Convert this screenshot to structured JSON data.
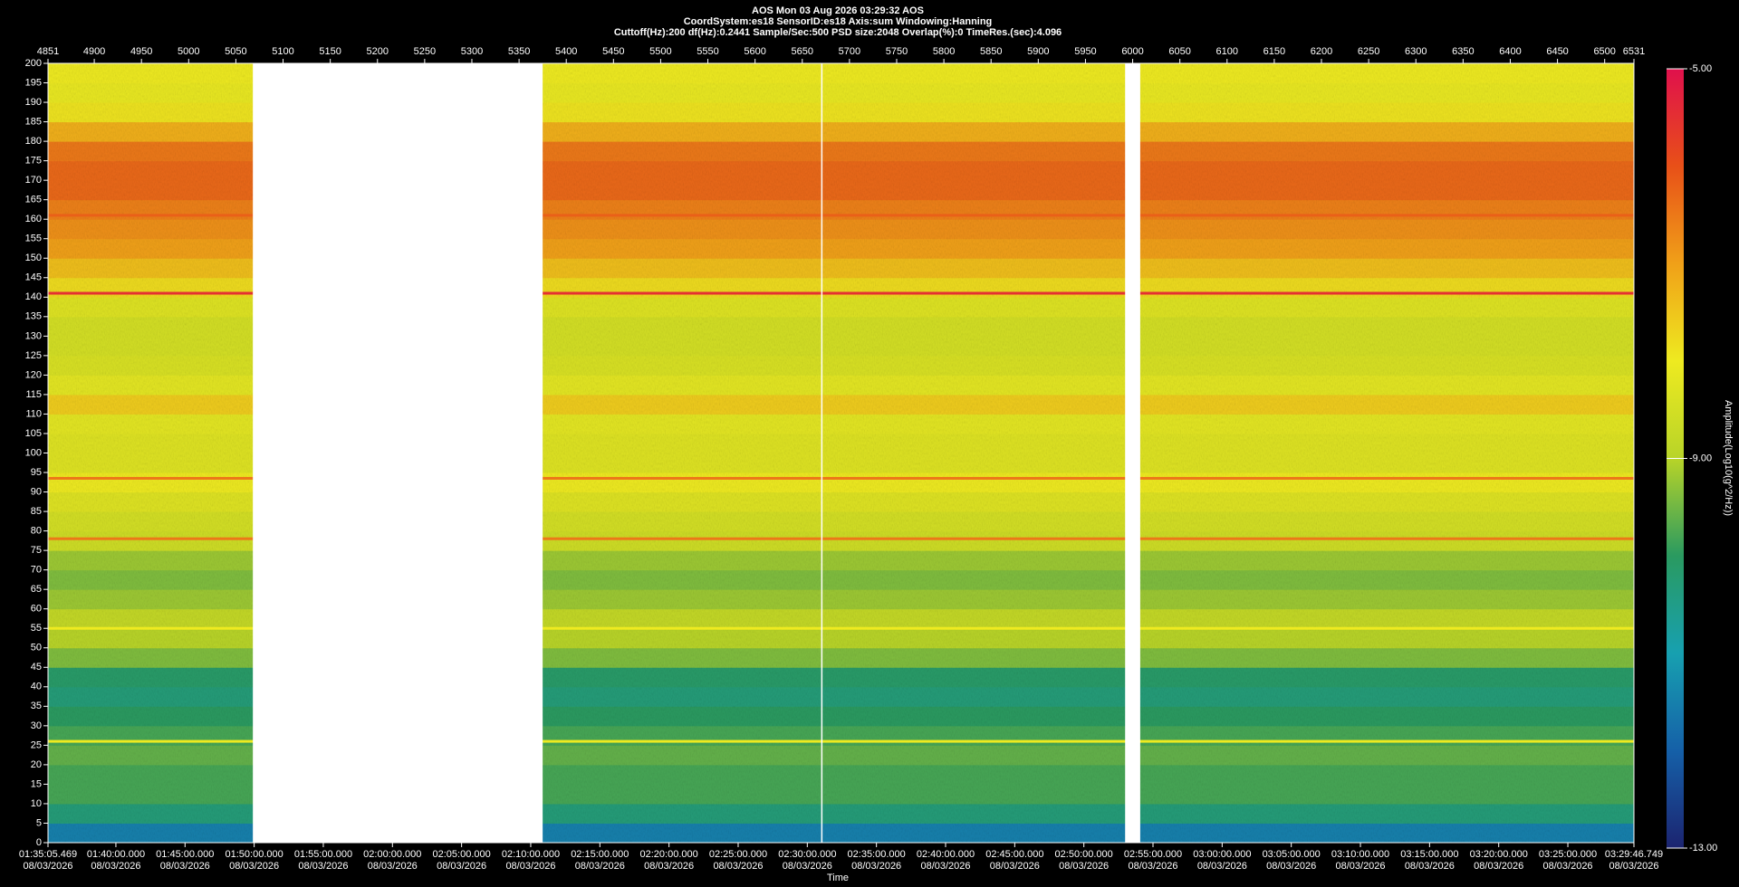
{
  "chart_data": {
    "type": "spectrogram",
    "title_lines": [
      "AOS  Mon 03 Aug 2026 03:29:32  AOS",
      "CoordSystem:es18   SensorID:es18   Axis:sum   Windowing:Hanning",
      "Cuttoff(Hz):200     df(Hz):0.2441     Sample/Sec:500     PSD size:2048     Overlap(%):0     TimeRes.(sec):4.096"
    ],
    "xlabel": "Time",
    "colorbar_label": "Amplitude(Log10(g^2/Hz))",
    "x2lim": [
      4851,
      6531
    ],
    "x2ticks": [
      4851,
      4900,
      4950,
      5000,
      5050,
      5100,
      5150,
      5200,
      5250,
      5300,
      5350,
      5400,
      5450,
      5500,
      5550,
      5600,
      5650,
      5700,
      5750,
      5800,
      5850,
      5900,
      5950,
      6000,
      6050,
      6100,
      6150,
      6200,
      6250,
      6300,
      6350,
      6400,
      6450,
      6500,
      6531
    ],
    "xlim": [
      "01:35:05.469",
      "03:29:46.749"
    ],
    "xticks": [
      {
        "time": "01:35:05.469",
        "date": "08/03/2026"
      },
      {
        "time": "01:40:00.000",
        "date": "08/03/2026"
      },
      {
        "time": "01:45:00.000",
        "date": "08/03/2026"
      },
      {
        "time": "01:50:00.000",
        "date": "08/03/2026"
      },
      {
        "time": "01:55:00.000",
        "date": "08/03/2026"
      },
      {
        "time": "02:00:00.000",
        "date": "08/03/2026"
      },
      {
        "time": "02:05:00.000",
        "date": "08/03/2026"
      },
      {
        "time": "02:10:00.000",
        "date": "08/03/2026"
      },
      {
        "time": "02:15:00.000",
        "date": "08/03/2026"
      },
      {
        "time": "02:20:00.000",
        "date": "08/03/2026"
      },
      {
        "time": "02:25:00.000",
        "date": "08/03/2026"
      },
      {
        "time": "02:30:00.000",
        "date": "08/03/2026"
      },
      {
        "time": "02:35:00.000",
        "date": "08/03/2026"
      },
      {
        "time": "02:40:00.000",
        "date": "08/03/2026"
      },
      {
        "time": "02:45:00.000",
        "date": "08/03/2026"
      },
      {
        "time": "02:50:00.000",
        "date": "08/03/2026"
      },
      {
        "time": "02:55:00.000",
        "date": "08/03/2026"
      },
      {
        "time": "03:00:00.000",
        "date": "08/03/2026"
      },
      {
        "time": "03:05:00.000",
        "date": "08/03/2026"
      },
      {
        "time": "03:10:00.000",
        "date": "08/03/2026"
      },
      {
        "time": "03:15:00.000",
        "date": "08/03/2026"
      },
      {
        "time": "03:20:00.000",
        "date": "08/03/2026"
      },
      {
        "time": "03:25:00.000",
        "date": "08/03/2026"
      },
      {
        "time": "03:29:46.749",
        "date": "08/03/2026"
      }
    ],
    "ylim": [
      0,
      200
    ],
    "yticks": [
      0,
      5,
      10,
      15,
      20,
      25,
      30,
      35,
      40,
      45,
      50,
      55,
      60,
      65,
      70,
      75,
      80,
      85,
      90,
      95,
      100,
      105,
      110,
      115,
      120,
      125,
      130,
      135,
      140,
      145,
      150,
      155,
      160,
      165,
      170,
      175,
      180,
      185,
      190,
      195,
      200
    ],
    "clim": [
      -13,
      -5
    ],
    "cticks": [
      {
        "value": -5,
        "label": "-5.00"
      },
      {
        "value": -9,
        "label": "-9.00"
      },
      {
        "value": -13,
        "label": "-13.00"
      }
    ],
    "colormap": [
      "#1c2470",
      "#1560a8",
      "#17a0b0",
      "#2a9a60",
      "#b8d428",
      "#eeea20",
      "#f0a018",
      "#e85018",
      "#e0104c"
    ],
    "freq_bins": [
      0,
      5,
      10,
      15,
      20,
      25,
      30,
      35,
      40,
      45,
      50,
      55,
      60,
      65,
      70,
      75,
      80,
      85,
      90,
      95,
      100,
      105,
      110,
      115,
      120,
      125,
      130,
      135,
      140,
      145,
      150,
      155,
      160,
      165,
      170,
      175,
      180,
      185,
      190,
      195,
      200
    ],
    "amplitude": [
      -11.5,
      -10.3,
      -9.8,
      -9.8,
      -9.6,
      -9.8,
      -10,
      -10.3,
      -10.1,
      -9.4,
      -9,
      -8.8,
      -9.2,
      -9.4,
      -9.2,
      -8.6,
      -8.5,
      -8.3,
      -8,
      -8.3,
      -8.3,
      -8.2,
      -7.6,
      -8.2,
      -8.4,
      -8.5,
      -8.5,
      -8.3,
      -7.8,
      -7.4,
      -7,
      -6.8,
      -6.6,
      -6.3,
      -6.3,
      -6.5,
      -7.2,
      -7.9,
      -8.1,
      -8
    ],
    "lines": [
      {
        "freq": 141,
        "amplitude": -5.5
      },
      {
        "freq": 161,
        "amplitude": -6.2
      },
      {
        "freq": 93.5,
        "amplitude": -6.5
      },
      {
        "freq": 78,
        "amplitude": -6.5
      },
      {
        "freq": 55,
        "amplitude": -8
      },
      {
        "freq": 26,
        "amplitude": -8
      }
    ],
    "gaps": [
      [
        5068,
        5375
      ],
      [
        5670,
        5671
      ],
      [
        5992,
        6008
      ]
    ]
  }
}
